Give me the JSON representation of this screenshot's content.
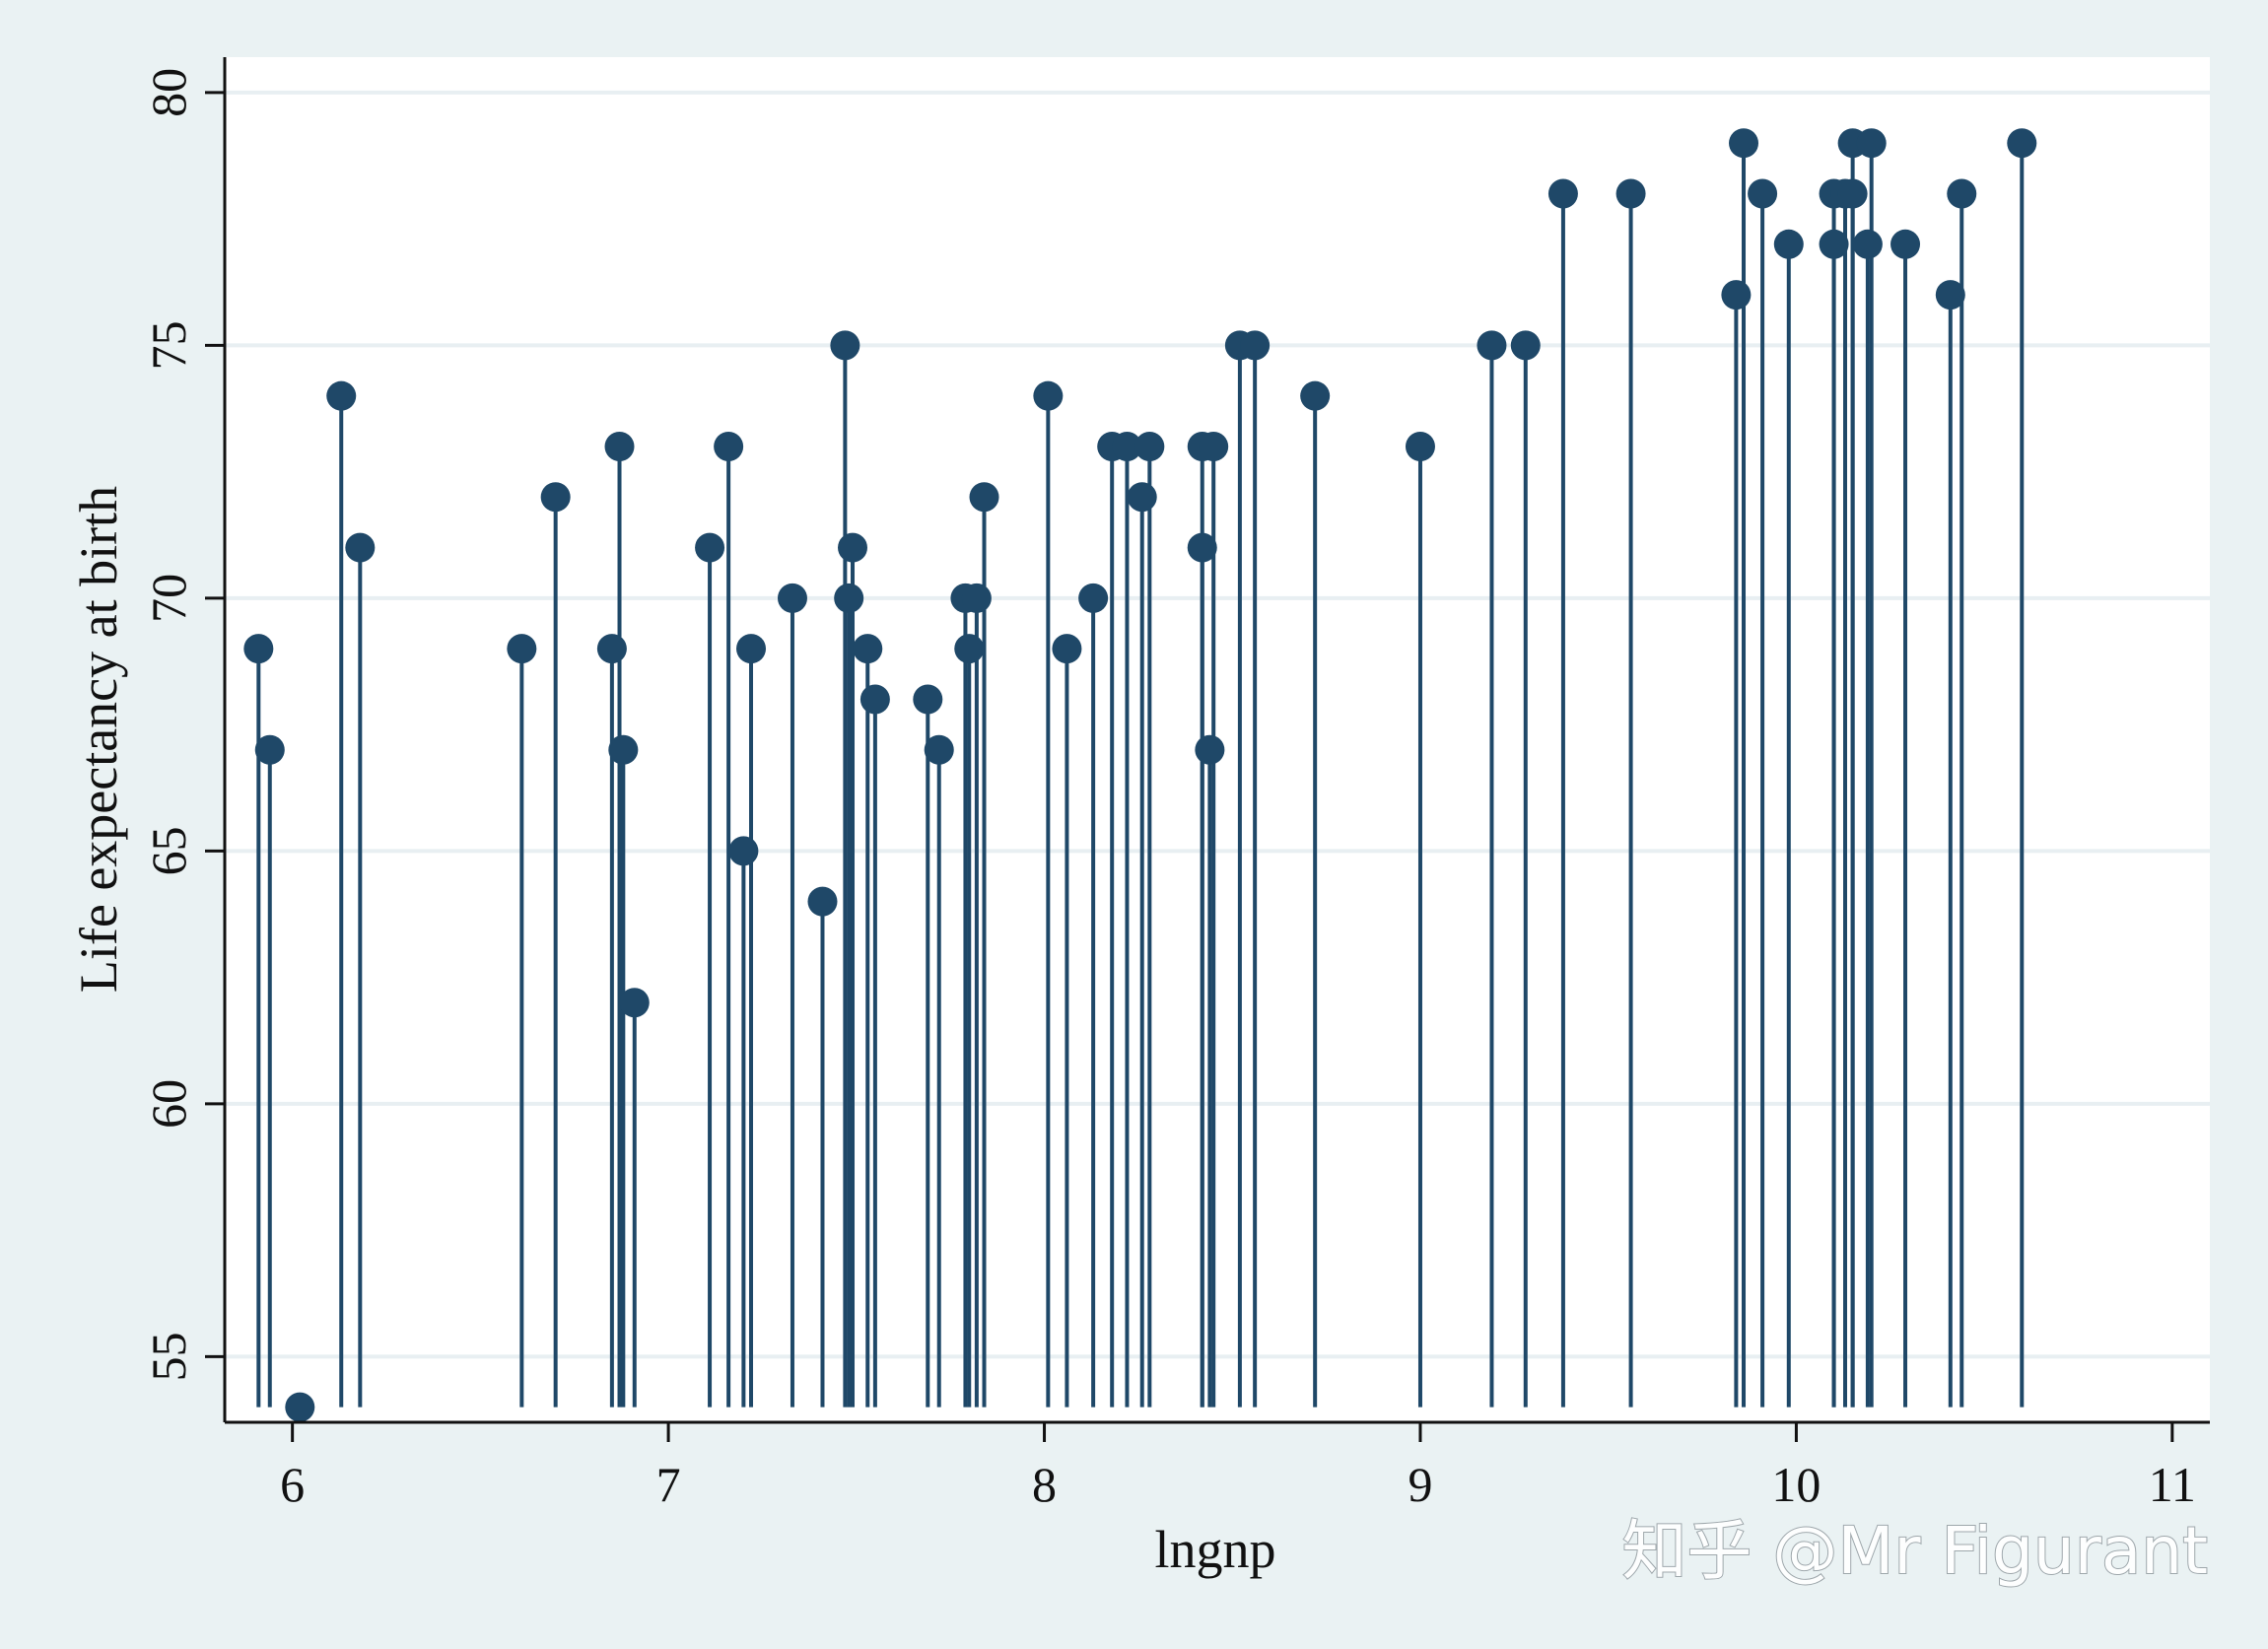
{
  "watermark": "知乎 @Mr Figurant",
  "chart_data": {
    "type": "scatter",
    "style": "dropline",
    "xlabel": "lngnp",
    "ylabel": "Life expectancy at birth",
    "xlim": [
      5.82,
      11.1
    ],
    "ylim": [
      53.7,
      80.7
    ],
    "dropline_base": 54,
    "xticks": [
      6,
      7,
      8,
      9,
      10,
      11
    ],
    "yticks": [
      55,
      60,
      65,
      70,
      75,
      80
    ],
    "grid": true,
    "colors": {
      "marker": "#1f4868",
      "background": "#eaf2f3",
      "plot_background": "#ffffff",
      "grid": "#e8eff2"
    },
    "points": [
      {
        "x": 5.91,
        "y": 69
      },
      {
        "x": 5.94,
        "y": 67
      },
      {
        "x": 6.02,
        "y": 54
      },
      {
        "x": 6.13,
        "y": 74
      },
      {
        "x": 6.18,
        "y": 71
      },
      {
        "x": 6.61,
        "y": 69
      },
      {
        "x": 6.7,
        "y": 72
      },
      {
        "x": 6.85,
        "y": 69
      },
      {
        "x": 6.87,
        "y": 73
      },
      {
        "x": 6.88,
        "y": 67
      },
      {
        "x": 6.91,
        "y": 62
      },
      {
        "x": 7.11,
        "y": 71
      },
      {
        "x": 7.16,
        "y": 73
      },
      {
        "x": 7.2,
        "y": 65
      },
      {
        "x": 7.22,
        "y": 69
      },
      {
        "x": 7.33,
        "y": 70
      },
      {
        "x": 7.41,
        "y": 64
      },
      {
        "x": 7.47,
        "y": 75
      },
      {
        "x": 7.48,
        "y": 70
      },
      {
        "x": 7.49,
        "y": 71
      },
      {
        "x": 7.53,
        "y": 69
      },
      {
        "x": 7.55,
        "y": 68
      },
      {
        "x": 7.69,
        "y": 68
      },
      {
        "x": 7.72,
        "y": 67
      },
      {
        "x": 7.79,
        "y": 70
      },
      {
        "x": 7.8,
        "y": 69
      },
      {
        "x": 7.82,
        "y": 70
      },
      {
        "x": 7.84,
        "y": 72
      },
      {
        "x": 8.01,
        "y": 74
      },
      {
        "x": 8.06,
        "y": 69
      },
      {
        "x": 8.13,
        "y": 70
      },
      {
        "x": 8.18,
        "y": 73
      },
      {
        "x": 8.22,
        "y": 73
      },
      {
        "x": 8.26,
        "y": 72
      },
      {
        "x": 8.28,
        "y": 73
      },
      {
        "x": 8.42,
        "y": 73
      },
      {
        "x": 8.42,
        "y": 71
      },
      {
        "x": 8.44,
        "y": 67
      },
      {
        "x": 8.45,
        "y": 73
      },
      {
        "x": 8.52,
        "y": 75
      },
      {
        "x": 8.56,
        "y": 75
      },
      {
        "x": 8.72,
        "y": 74
      },
      {
        "x": 9.0,
        "y": 73
      },
      {
        "x": 9.19,
        "y": 75
      },
      {
        "x": 9.28,
        "y": 75
      },
      {
        "x": 9.38,
        "y": 78
      },
      {
        "x": 9.56,
        "y": 78
      },
      {
        "x": 9.84,
        "y": 76
      },
      {
        "x": 9.86,
        "y": 79
      },
      {
        "x": 9.91,
        "y": 78
      },
      {
        "x": 9.98,
        "y": 77
      },
      {
        "x": 10.1,
        "y": 78
      },
      {
        "x": 10.1,
        "y": 77
      },
      {
        "x": 10.13,
        "y": 78
      },
      {
        "x": 10.15,
        "y": 79
      },
      {
        "x": 10.15,
        "y": 78
      },
      {
        "x": 10.19,
        "y": 77
      },
      {
        "x": 10.2,
        "y": 79
      },
      {
        "x": 10.29,
        "y": 77
      },
      {
        "x": 10.41,
        "y": 76
      },
      {
        "x": 10.44,
        "y": 78
      },
      {
        "x": 10.6,
        "y": 79
      }
    ]
  }
}
